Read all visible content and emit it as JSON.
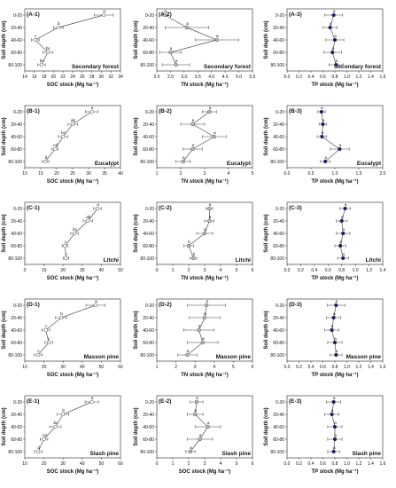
{
  "chart_data": [
    {
      "id": "A-1",
      "type": "line",
      "panel_label": "(A-1)",
      "forest": "Secondary forest",
      "xlabel": "SOC stock (Mg ha⁻¹)",
      "ylabel": "Soil depth (cm)",
      "xlim": [
        14,
        34
      ],
      "xticks": [
        14,
        16,
        18,
        20,
        22,
        24,
        26,
        28,
        30,
        32,
        34
      ],
      "y_categories": [
        "0-20",
        "20-40",
        "40-60",
        "60-80",
        "80-100"
      ],
      "values": [
        30.5,
        21.0,
        16.2,
        18.8,
        17.5
      ],
      "errors": [
        2.0,
        1.0,
        0.8,
        1.0,
        0.8
      ],
      "letters": [
        "a",
        "b",
        "c",
        "bc",
        "bc"
      ],
      "marker_color": "#ffffff"
    },
    {
      "id": "A-2",
      "type": "line",
      "panel_label": "(A-2)",
      "forest": "Secondary forest",
      "xlabel": "TN stock (Mg ha⁻¹)",
      "ylabel": "Soil depth (cm)",
      "xlim": [
        2.0,
        5.5
      ],
      "xticks": [
        2.0,
        2.5,
        3.0,
        3.5,
        4.0,
        4.5,
        5.0,
        5.5
      ],
      "y_categories": [
        "0-20",
        "20-40",
        "40-60",
        "60-80",
        "80-100"
      ],
      "values": [
        2.3,
        3.1,
        4.2,
        2.5,
        2.7
      ],
      "errors": [
        0.1,
        0.8,
        0.8,
        0.4,
        0.5
      ],
      "letters": [
        "a",
        "a",
        "a",
        "a",
        "a"
      ],
      "marker_color": "#c0c0c0"
    },
    {
      "id": "A-3",
      "type": "line",
      "panel_label": "(A-3)",
      "forest": "Secondary forest",
      "xlabel": "TP stock (Mg ha⁻¹)",
      "ylabel": "Soil depth (cm)",
      "xlim": [
        0.0,
        1.6
      ],
      "xticks": [
        0.0,
        0.2,
        0.4,
        0.6,
        0.8,
        1.0,
        1.2,
        1.4,
        1.6
      ],
      "y_categories": [
        "0-20",
        "20-40",
        "40-60",
        "60-80",
        "80-100"
      ],
      "values": [
        0.78,
        0.72,
        0.8,
        0.76,
        0.82
      ],
      "errors": [
        0.15,
        0.12,
        0.15,
        0.15,
        0.12
      ],
      "letters": [
        "a",
        "a",
        "a",
        "a",
        "a"
      ],
      "marker_color": "#1a1a7a"
    },
    {
      "id": "B-1",
      "type": "line",
      "panel_label": "(B-1)",
      "forest": "Eucalypt",
      "xlabel": "SOC stock (Mg ha⁻¹)",
      "ylabel": "Soil depth (cm)",
      "xlim": [
        10,
        40
      ],
      "xticks": [
        10,
        15,
        20,
        25,
        30,
        35,
        40
      ],
      "y_categories": [
        "0-20",
        "20-40",
        "40-60",
        "60-80",
        "80-100"
      ],
      "values": [
        31.0,
        25.0,
        22.0,
        19.5,
        16.5
      ],
      "errors": [
        2.0,
        1.5,
        1.5,
        1.0,
        1.0
      ],
      "letters": [
        "a",
        "ab",
        "bc",
        "cd",
        "d"
      ],
      "marker_color": "#ffffff"
    },
    {
      "id": "B-2",
      "type": "line",
      "panel_label": "(B-2)",
      "forest": "Eucalypt",
      "xlabel": "TN stock (Mg ha⁻¹)",
      "ylabel": "Soil depth (cm)",
      "xlim": [
        1,
        5
      ],
      "xticks": [
        1,
        2,
        3,
        4,
        5
      ],
      "y_categories": [
        "0-20",
        "20-40",
        "40-60",
        "60-80",
        "80-100"
      ],
      "values": [
        3.2,
        2.5,
        3.4,
        2.5,
        2.1
      ],
      "errors": [
        0.3,
        0.5,
        0.5,
        0.4,
        0.3
      ],
      "letters": [
        "a",
        "a",
        "a",
        "a",
        "a"
      ],
      "marker_color": "#c0c0c0"
    },
    {
      "id": "B-3",
      "type": "line",
      "panel_label": "(B-3)",
      "forest": "Eucalypt",
      "xlabel": "TP stock (Mg ha⁻¹)",
      "ylabel": "Soil depth (cm)",
      "xlim": [
        0.0,
        2.0
      ],
      "xticks": [
        0.0,
        0.5,
        1.0,
        1.5,
        2.0
      ],
      "y_categories": [
        "0-20",
        "20-40",
        "40-60",
        "60-80",
        "80-100"
      ],
      "values": [
        0.72,
        0.75,
        0.73,
        1.1,
        0.8
      ],
      "errors": [
        0.08,
        0.08,
        0.1,
        0.2,
        0.1
      ],
      "letters": [
        "a",
        "a",
        "a",
        "a",
        "a"
      ],
      "marker_color": "#1a1a7a"
    },
    {
      "id": "C-1",
      "type": "line",
      "panel_label": "(C-1)",
      "forest": "Litchi",
      "xlabel": "SOC stock (Mg ha⁻¹)",
      "ylabel": "Soil depth (cm)",
      "xlim": [
        0,
        50
      ],
      "xticks": [
        0,
        10,
        20,
        30,
        40,
        50
      ],
      "y_categories": [
        "0-20",
        "20-40",
        "40-60",
        "60-80",
        "80-100"
      ],
      "values": [
        38.0,
        33.0,
        26.0,
        21.0,
        21.5
      ],
      "errors": [
        2.0,
        2.5,
        2.0,
        1.5,
        1.5
      ],
      "letters": [
        "a",
        "ab",
        "bc",
        "c",
        "c"
      ],
      "marker_color": "#ffffff"
    },
    {
      "id": "C-2",
      "type": "line",
      "panel_label": "(C-2)",
      "forest": "Litchi",
      "xlabel": "TN stock (Mg ha⁻¹)",
      "ylabel": "Soil depth (cm)",
      "xlim": [
        0,
        6
      ],
      "xticks": [
        0,
        1,
        2,
        3,
        4,
        5,
        6
      ],
      "y_categories": [
        "0-20",
        "20-40",
        "40-60",
        "60-80",
        "80-100"
      ],
      "values": [
        3.3,
        3.3,
        3.0,
        2.0,
        2.3
      ],
      "errors": [
        0.2,
        0.3,
        0.5,
        0.3,
        0.2
      ],
      "letters": [
        "a",
        "a",
        "a",
        "b",
        "b"
      ],
      "marker_color": "#c0c0c0"
    },
    {
      "id": "C-3",
      "type": "line",
      "panel_label": "(C-3)",
      "forest": "Litchi",
      "xlabel": "TP stock (Mg ha⁻¹)",
      "ylabel": "Soil depth (cm)",
      "xlim": [
        0.0,
        1.4
      ],
      "xticks": [
        0.0,
        0.2,
        0.4,
        0.6,
        0.8,
        1.0,
        1.2,
        1.4
      ],
      "y_categories": [
        "0-20",
        "20-40",
        "40-60",
        "60-80",
        "80-100"
      ],
      "values": [
        0.85,
        0.8,
        0.82,
        0.78,
        0.82
      ],
      "errors": [
        0.08,
        0.08,
        0.1,
        0.08,
        0.08
      ],
      "letters": [
        "a",
        "a",
        "a",
        "a",
        "a"
      ],
      "marker_color": "#1a1a7a"
    },
    {
      "id": "D-1",
      "type": "line",
      "panel_label": "(D-1)",
      "forest": "Masson pine",
      "xlabel": "SOC stock (Mg ha⁻¹)",
      "ylabel": "Soil depth (cm)",
      "xlim": [
        10,
        60
      ],
      "xticks": [
        10,
        20,
        30,
        40,
        50,
        60
      ],
      "y_categories": [
        "0-20",
        "20-40",
        "40-60",
        "60-80",
        "80-100"
      ],
      "values": [
        47.0,
        29.0,
        21.0,
        22.5,
        17.0
      ],
      "errors": [
        5.0,
        3.0,
        2.0,
        2.0,
        2.0
      ],
      "letters": [
        "a",
        "b",
        "c",
        "c",
        "c"
      ],
      "marker_color": "#ffffff"
    },
    {
      "id": "D-2",
      "type": "line",
      "panel_label": "(D-2)",
      "forest": "Masson pine",
      "xlabel": "TN stock (Mg ha⁻¹)",
      "ylabel": "Soil depth (cm)",
      "xlim": [
        1,
        6
      ],
      "xticks": [
        1,
        2,
        3,
        4,
        5,
        6
      ],
      "y_categories": [
        "0-20",
        "20-40",
        "40-60",
        "60-80",
        "80-100"
      ],
      "values": [
        3.6,
        3.5,
        3.2,
        3.4,
        2.6
      ],
      "errors": [
        1.0,
        0.8,
        0.8,
        0.8,
        0.5
      ],
      "letters": [
        "a",
        "a",
        "a",
        "a",
        "a"
      ],
      "marker_color": "#c0c0c0"
    },
    {
      "id": "D-3",
      "type": "line",
      "panel_label": "(D-3)",
      "forest": "Masson pine",
      "xlabel": "TP stock (Mg ha⁻¹)",
      "ylabel": "Soil depth (cm)",
      "xlim": [
        0.0,
        1.6
      ],
      "xticks": [
        0.0,
        0.2,
        0.4,
        0.6,
        0.8,
        1.0,
        1.2,
        1.4,
        1.6
      ],
      "y_categories": [
        "0-20",
        "20-40",
        "40-60",
        "60-80",
        "80-100"
      ],
      "values": [
        0.82,
        0.78,
        0.75,
        0.8,
        0.82
      ],
      "errors": [
        0.15,
        0.12,
        0.12,
        0.12,
        0.1
      ],
      "letters": [
        "a",
        "a",
        "a",
        "a",
        "a"
      ],
      "marker_color": "#1a1a7a"
    },
    {
      "id": "E-1",
      "type": "line",
      "panel_label": "(E-1)",
      "forest": "Slash pine",
      "xlabel": "SOC stock (Mg ha⁻¹)",
      "ylabel": "Soil depth (cm)",
      "xlim": [
        10,
        60
      ],
      "xticks": [
        10,
        20,
        30,
        40,
        50,
        60
      ],
      "y_categories": [
        "0-20",
        "20-40",
        "40-60",
        "60-80",
        "80-100"
      ],
      "values": [
        45.0,
        30.0,
        26.0,
        20.0,
        17.0
      ],
      "errors": [
        3.5,
        3.0,
        3.0,
        2.0,
        2.0
      ],
      "letters": [
        "a",
        "b",
        "bc",
        "cd",
        "d"
      ],
      "marker_color": "#ffffff"
    },
    {
      "id": "E-2",
      "type": "line",
      "panel_label": "(E-2)",
      "forest": "Slash pine",
      "xlabel": "SOC stock (Mg ha⁻¹)",
      "ylabel": "Soil depth (cm)",
      "xlim": [
        0,
        6
      ],
      "xticks": [
        0,
        1,
        2,
        3,
        4,
        5,
        6
      ],
      "y_categories": [
        "0-20",
        "20-40",
        "40-60",
        "60-80",
        "80-100"
      ],
      "values": [
        2.5,
        2.4,
        3.2,
        2.7,
        2.1
      ],
      "errors": [
        0.4,
        0.5,
        0.8,
        0.8,
        0.3
      ],
      "letters": [
        "a",
        "a",
        "a",
        "a",
        "a"
      ],
      "marker_color": "#c0c0c0"
    },
    {
      "id": "E-3",
      "type": "line",
      "panel_label": "(E-3)",
      "forest": "Slash pine",
      "xlabel": "TP stock (Mg ha⁻¹)",
      "ylabel": "Soil depth (cm)",
      "xlim": [
        0.0,
        1.6
      ],
      "xticks": [
        0.0,
        0.2,
        0.4,
        0.6,
        0.8,
        1.0,
        1.2,
        1.4,
        1.6
      ],
      "y_categories": [
        "0-20",
        "20-40",
        "40-60",
        "60-80",
        "80-100"
      ],
      "values": [
        0.78,
        0.75,
        0.8,
        0.8,
        0.78
      ],
      "errors": [
        0.12,
        0.12,
        0.12,
        0.12,
        0.1
      ],
      "letters": [
        "a",
        "a",
        "a",
        "a",
        "a"
      ],
      "marker_color": "#1a1a7a"
    }
  ]
}
